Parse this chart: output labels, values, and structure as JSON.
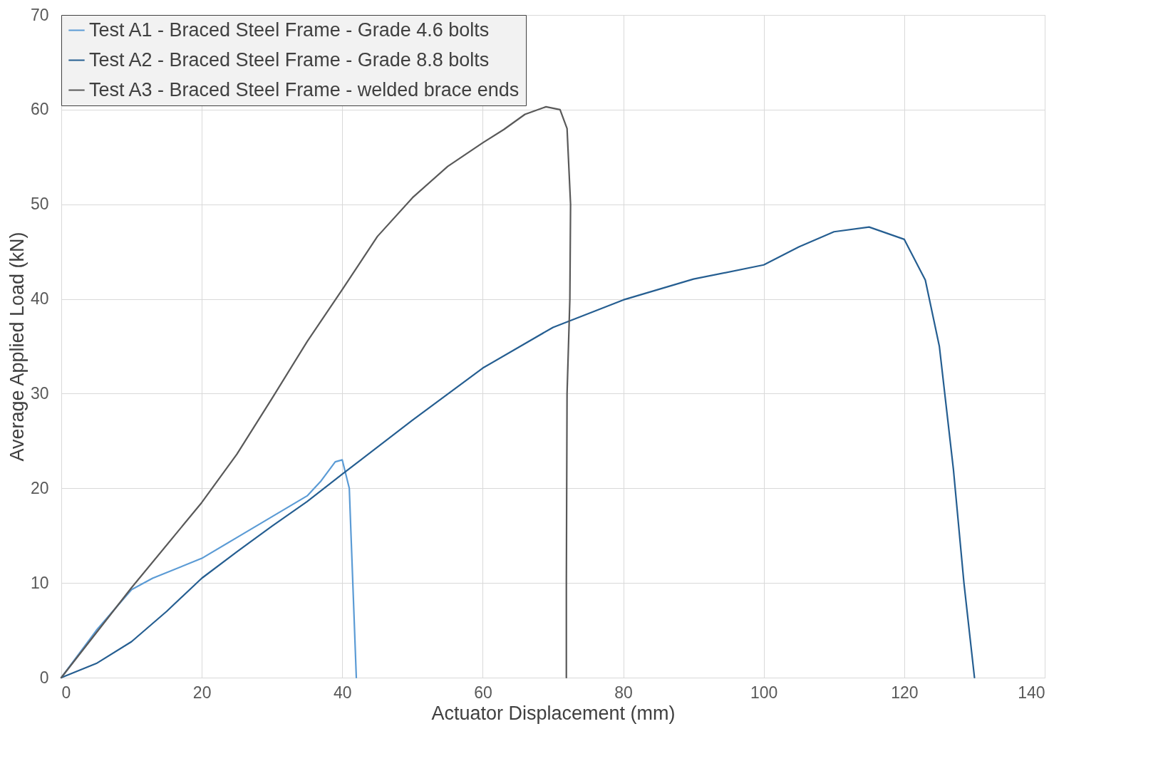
{
  "chart_data": {
    "type": "line",
    "xlabel": "Actuator Displacement (mm)",
    "ylabel": "Average Applied Load (kN)",
    "xlim": [
      0,
      140
    ],
    "xticks": [
      0,
      20,
      40,
      60,
      80,
      100,
      120,
      140
    ],
    "ylim": [
      0,
      70
    ],
    "yticks": [
      0,
      10,
      20,
      30,
      40,
      50,
      60,
      70
    ],
    "grid": true,
    "legend": "top left",
    "line_style": "solid",
    "marker": "none",
    "series": [
      {
        "name": "Test A1 - Braced Steel Frame - Grade 4.6 bolts",
        "color": "#5b9bd5",
        "x": [
          0,
          5,
          10,
          13,
          20,
          25,
          30,
          35,
          37,
          39,
          40,
          41,
          41.5,
          42
        ],
        "values": [
          0,
          5,
          9.3,
          10.5,
          12.6,
          14.8,
          17,
          19.2,
          20.8,
          22.8,
          23,
          20,
          10,
          0
        ]
      },
      {
        "name": "Test A2 - Braced Steel Frame - Grade 8.8 bolts",
        "color": "#255e91",
        "x": [
          0,
          5,
          10,
          15,
          20,
          25,
          30,
          35,
          40,
          50,
          60,
          70,
          80,
          90,
          100,
          105,
          110,
          115,
          120,
          123,
          125,
          127,
          128.5,
          130
        ],
        "values": [
          0,
          1.5,
          3.8,
          7,
          10.5,
          13.3,
          16,
          18.6,
          21.5,
          27.2,
          32.7,
          37,
          39.9,
          42.1,
          43.6,
          45.5,
          47.1,
          47.6,
          46.3,
          42,
          35,
          22,
          10,
          0
        ]
      },
      {
        "name": "Test A3 - Braced Steel Frame - welded brace ends",
        "color": "#595959",
        "x": [
          0,
          10,
          20,
          25,
          30,
          35,
          40,
          45,
          50,
          55,
          60,
          63,
          66,
          69,
          71,
          72,
          72.5,
          72.4,
          72,
          71.9,
          71.9
        ],
        "values": [
          0,
          9.5,
          18.5,
          23.6,
          29.5,
          35.5,
          41,
          46.6,
          50.7,
          54,
          56.5,
          57.9,
          59.5,
          60.3,
          60,
          58,
          50,
          40,
          30,
          10,
          0
        ]
      }
    ]
  }
}
